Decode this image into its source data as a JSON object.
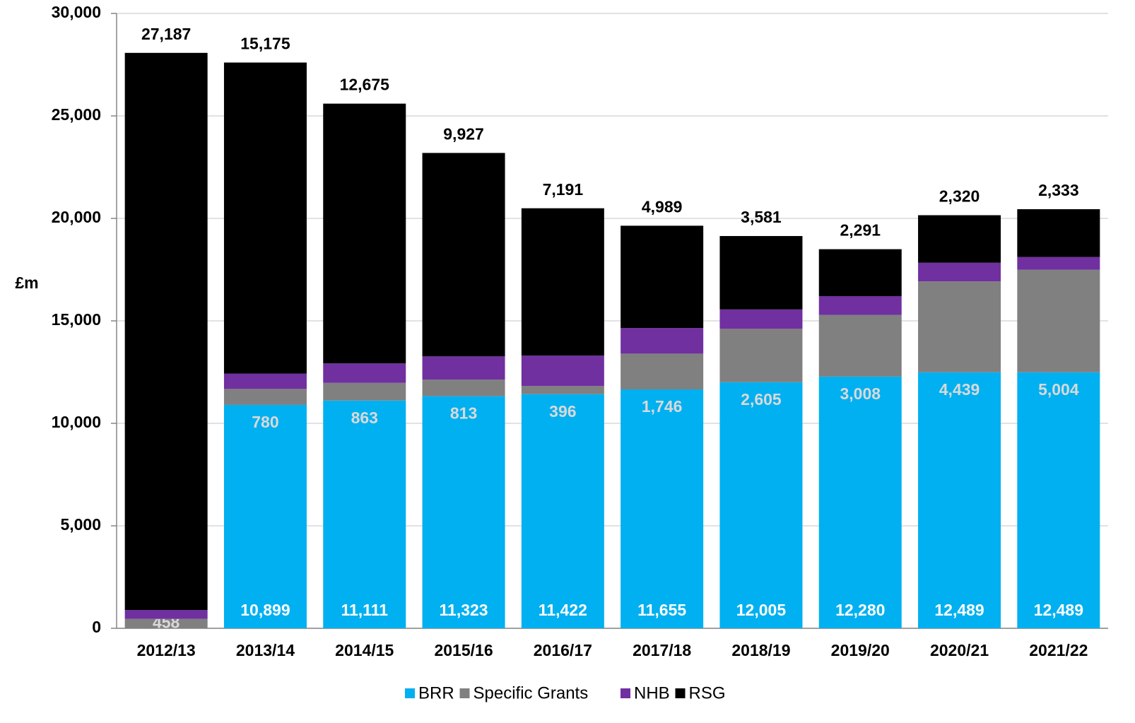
{
  "chart_data": {
    "type": "stacked_bar",
    "y_label": "£m",
    "categories": [
      "2012/13",
      "2013/14",
      "2014/15",
      "2015/16",
      "2016/17",
      "2017/18",
      "2018/19",
      "2019/20",
      "2020/21",
      "2021/22"
    ],
    "series": [
      {
        "name": "BRR",
        "color": "#00b0f0",
        "values": [
          null,
          10899,
          11111,
          11323,
          11422,
          11655,
          12005,
          12280,
          12489,
          12489
        ],
        "value_labels": [
          null,
          "10,899",
          "11,111",
          "11,323",
          "11,422",
          "11,655",
          "12,005",
          "12,280",
          "12,489",
          "12,489"
        ]
      },
      {
        "name": "Specific Grants",
        "color": "#808080",
        "values": [
          458,
          780,
          863,
          813,
          396,
          1746,
          2605,
          3008,
          4439,
          5004
        ],
        "value_labels": [
          "458",
          "780",
          "863",
          "813",
          "396",
          "1,746",
          "2,605",
          "3,008",
          "4,439",
          "5,004"
        ]
      },
      {
        "name": "NHB",
        "color": "#7030a0",
        "values": [
          431,
          750,
          950,
          1130,
          1485,
          1252,
          948,
          918,
          907,
          622
        ],
        "value_labels": [
          "431",
          "750",
          "950",
          "1,130",
          "1,485",
          "1,252",
          "948",
          "918",
          "907",
          "622"
        ]
      },
      {
        "name": "RSG",
        "color": "#000000",
        "values": [
          27187,
          15175,
          12675,
          9927,
          7191,
          4989,
          3581,
          2291,
          2320,
          2333
        ],
        "value_labels": [
          "27,187",
          "15,175",
          "12,675",
          "9,927",
          "7,191",
          "4,989",
          "3,581",
          "2,291",
          "2,320",
          "2,333"
        ]
      }
    ],
    "ylim": [
      0,
      30000
    ],
    "yticks": [
      0,
      {
        "value": 5000,
        "label": "5,000"
      },
      {
        "value": 10000,
        "label": "10,000"
      },
      {
        "value": 15000,
        "label": "15,000"
      },
      {
        "value": 20000,
        "label": "20,000"
      },
      {
        "value": 25000,
        "label": "25,000"
      },
      {
        "value": 30000,
        "label": "30,000"
      }
    ],
    "grid": true,
    "legend": "bottom"
  }
}
